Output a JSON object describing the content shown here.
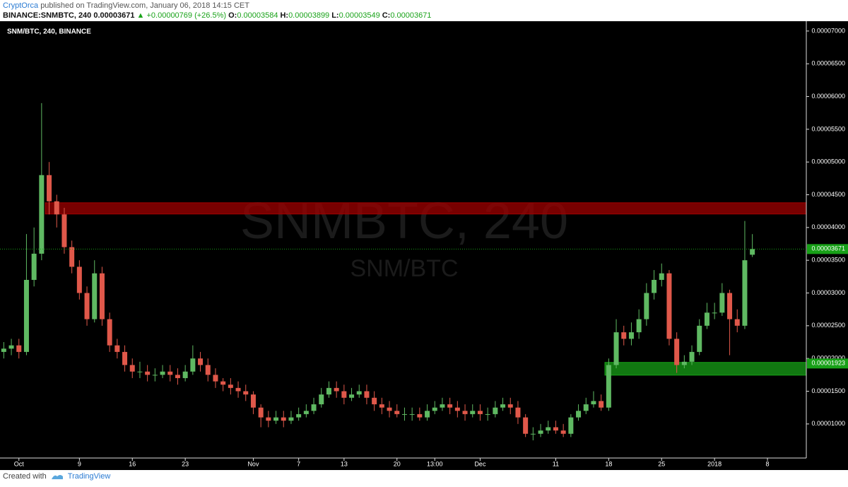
{
  "header": {
    "author": "CryptOrca",
    "published": "published on TradingView.com, January 06, 2018 14:15 CET",
    "symbol": "BINANCE:SNMBTC, 240",
    "last": "0.00003671",
    "change": "▲ +0.00000769 (+26.5%)",
    "ohlc": [
      {
        "label": "O:",
        "value": "0.00003584"
      },
      {
        "label": "H:",
        "value": "0.00003899"
      },
      {
        "label": "L:",
        "value": "0.00003549"
      },
      {
        "label": "C:",
        "value": "0.00003671"
      }
    ]
  },
  "footer": {
    "created": "Created with",
    "brand": "TradingView"
  },
  "chart_data": {
    "type": "candlestick",
    "legend": "SNM/BTC, 240, BINANCE",
    "watermark": "SNMBTC, 240",
    "watermark_sub": "SNM/BTC",
    "up_color": "#5fb962",
    "down_color": "#e0584a",
    "open": [
      2.1e-05,
      2.15e-05,
      2.2e-05,
      2.1e-05,
      3.2e-05,
      3.6e-05,
      4.8e-05,
      4.4e-05,
      4.2e-05,
      3.7e-05,
      3.4e-05,
      3e-05,
      2.6e-05,
      3.3e-05,
      2.6e-05,
      2.2e-05,
      2.1e-05,
      1.9e-05,
      1.8e-05,
      1.8e-05,
      1.75e-05,
      1.75e-05,
      1.8e-05,
      1.75e-05,
      1.7e-05,
      1.8e-05,
      2e-05,
      1.9e-05,
      1.75e-05,
      1.65e-05,
      1.6e-05,
      1.55e-05,
      1.5e-05,
      1.45e-05,
      1.25e-05,
      1.1e-05,
      1.05e-05,
      1.1e-05,
      1.05e-05,
      1.1e-05,
      1.15e-05,
      1.2e-05,
      1.3e-05,
      1.45e-05,
      1.55e-05,
      1.5e-05,
      1.4e-05,
      1.45e-05,
      1.5e-05,
      1.4e-05,
      1.3e-05,
      1.25e-05,
      1.2e-05,
      1.15e-05,
      1.15e-05,
      1.15e-05,
      1.1e-05,
      1.2e-05,
      1.25e-05,
      1.3e-05,
      1.25e-05,
      1.2e-05,
      1.15e-05,
      1.2e-05,
      1.15e-05,
      1.15e-05,
      1.25e-05,
      1.3e-05,
      1.25e-05,
      1.1e-05,
      8.5e-06,
      8.5e-06,
      9e-06,
      9.5e-06,
      9e-06,
      8.5e-06,
      1.1e-05,
      1.2e-05,
      1.3e-05,
      1.35e-05,
      1.25e-05,
      1.9e-05,
      2.4e-05,
      2.3e-05,
      2.4e-05,
      2.6e-05,
      3e-05,
      3.2e-05,
      3.3e-05,
      2.3e-05,
      1.9e-05,
      1.95e-05,
      2.1e-05,
      2.5e-05,
      2.7e-05,
      2.7e-05,
      3e-05,
      2.6e-05,
      2.5e-05,
      3.584e-05
    ],
    "high": [
      2.25e-05,
      2.3e-05,
      2.3e-05,
      3.9e-05,
      4e-05,
      5.9e-05,
      5e-05,
      4.5e-05,
      4.3e-05,
      3.8e-05,
      3.5e-05,
      3.1e-05,
      3.5e-05,
      3.4e-05,
      2.7e-05,
      2.3e-05,
      2.2e-05,
      2e-05,
      1.95e-05,
      1.9e-05,
      1.85e-05,
      1.9e-05,
      1.9e-05,
      1.85e-05,
      1.9e-05,
      2.2e-05,
      2.1e-05,
      2e-05,
      1.85e-05,
      1.7e-05,
      1.7e-05,
      1.65e-05,
      1.6e-05,
      1.5e-05,
      1.3e-05,
      1.2e-05,
      1.2e-05,
      1.2e-05,
      1.2e-05,
      1.25e-05,
      1.3e-05,
      1.4e-05,
      1.55e-05,
      1.65e-05,
      1.65e-05,
      1.6e-05,
      1.55e-05,
      1.6e-05,
      1.6e-05,
      1.5e-05,
      1.4e-05,
      1.35e-05,
      1.3e-05,
      1.25e-05,
      1.25e-05,
      1.25e-05,
      1.3e-05,
      1.35e-05,
      1.4e-05,
      1.4e-05,
      1.35e-05,
      1.3e-05,
      1.3e-05,
      1.3e-05,
      1.25e-05,
      1.35e-05,
      1.4e-05,
      1.4e-05,
      1.35e-05,
      1.15e-05,
      9.5e-06,
      1e-05,
      1.05e-05,
      1.05e-05,
      1e-05,
      1.15e-05,
      1.3e-05,
      1.4e-05,
      1.5e-05,
      1.45e-05,
      2e-05,
      2.6e-05,
      2.5e-05,
      2.55e-05,
      2.75e-05,
      3.15e-05,
      3.35e-05,
      3.45e-05,
      3.35e-05,
      2.4e-05,
      2.05e-05,
      2.2e-05,
      2.6e-05,
      2.85e-05,
      2.85e-05,
      3.15e-05,
      3.05e-05,
      2.75e-05,
      4.1e-05,
      3.899e-05
    ],
    "low": [
      2e-05,
      2.05e-05,
      2e-05,
      2.05e-05,
      3.1e-05,
      3.5e-05,
      4.2e-05,
      4e-05,
      3.6e-05,
      3.3e-05,
      2.9e-05,
      2.5e-05,
      2.55e-05,
      2.5e-05,
      2.1e-05,
      2e-05,
      1.8e-05,
      1.7e-05,
      1.7e-05,
      1.65e-05,
      1.65e-05,
      1.7e-05,
      1.65e-05,
      1.6e-05,
      1.65e-05,
      1.75e-05,
      1.8e-05,
      1.65e-05,
      1.55e-05,
      1.5e-05,
      1.45e-05,
      1.4e-05,
      1.35e-05,
      1.15e-05,
      9.5e-06,
      9.5e-06,
      1e-05,
      9.5e-06,
      1e-05,
      1.05e-05,
      1.1e-05,
      1.15e-05,
      1.25e-05,
      1.4e-05,
      1.4e-05,
      1.3e-05,
      1.35e-05,
      1.4e-05,
      1.3e-05,
      1.2e-05,
      1.15e-05,
      1.1e-05,
      1.1e-05,
      1.05e-05,
      1.05e-05,
      1.05e-05,
      1.05e-05,
      1.15e-05,
      1.2e-05,
      1.15e-05,
      1.1e-05,
      1.05e-05,
      1.1e-05,
      1.05e-05,
      1.05e-05,
      1.1e-05,
      1.2e-05,
      1.15e-05,
      1e-05,
      8e-06,
      7.5e-06,
      8e-06,
      8.5e-06,
      8.5e-06,
      8e-06,
      8e-06,
      1.05e-05,
      1.15e-05,
      1.25e-05,
      1.2e-05,
      1.2e-05,
      1.85e-05,
      2.2e-05,
      2.2e-05,
      2.3e-05,
      2.5e-05,
      2.9e-05,
      3.1e-05,
      2.2e-05,
      1.78e-05,
      1.85e-05,
      1.9e-05,
      2.05e-05,
      2.45e-05,
      2.6e-05,
      2.65e-05,
      2.05e-05,
      2.4e-05,
      2.45e-05,
      3.549e-05
    ],
    "close": [
      2.15e-05,
      2.2e-05,
      2.1e-05,
      3.2e-05,
      3.6e-05,
      4.8e-05,
      4.4e-05,
      4.2e-05,
      3.7e-05,
      3.4e-05,
      3e-05,
      2.6e-05,
      3.3e-05,
      2.6e-05,
      2.2e-05,
      2.1e-05,
      1.9e-05,
      1.8e-05,
      1.8e-05,
      1.75e-05,
      1.75e-05,
      1.8e-05,
      1.75e-05,
      1.7e-05,
      1.8e-05,
      2e-05,
      1.9e-05,
      1.75e-05,
      1.65e-05,
      1.6e-05,
      1.55e-05,
      1.5e-05,
      1.45e-05,
      1.25e-05,
      1.1e-05,
      1.05e-05,
      1.1e-05,
      1.05e-05,
      1.1e-05,
      1.15e-05,
      1.2e-05,
      1.3e-05,
      1.45e-05,
      1.55e-05,
      1.5e-05,
      1.4e-05,
      1.45e-05,
      1.5e-05,
      1.4e-05,
      1.3e-05,
      1.25e-05,
      1.2e-05,
      1.15e-05,
      1.15e-05,
      1.15e-05,
      1.1e-05,
      1.2e-05,
      1.25e-05,
      1.3e-05,
      1.25e-05,
      1.2e-05,
      1.15e-05,
      1.2e-05,
      1.15e-05,
      1.15e-05,
      1.25e-05,
      1.3e-05,
      1.25e-05,
      1.1e-05,
      8.5e-06,
      8.5e-06,
      9e-06,
      9.5e-06,
      9e-06,
      8.5e-06,
      1.1e-05,
      1.2e-05,
      1.3e-05,
      1.35e-05,
      1.25e-05,
      1.9e-05,
      2.4e-05,
      2.3e-05,
      2.4e-05,
      2.6e-05,
      3e-05,
      3.2e-05,
      3.3e-05,
      2.3e-05,
      1.9e-05,
      1.95e-05,
      2.1e-05,
      2.5e-05,
      2.7e-05,
      2.7e-05,
      3e-05,
      2.6e-05,
      2.5e-05,
      3.5e-05,
      3.671e-05
    ],
    "zones": [
      {
        "low": 4.206e-05,
        "high": 4.378e-05,
        "start": 6,
        "color": "#a00000"
      },
      {
        "low": 1.745e-05,
        "high": 1.94e-05,
        "start": 80,
        "color": "#17a017"
      }
    ],
    "last_price": {
      "value": 3.671e-05,
      "label": "0.00003671",
      "color": "#17a017"
    },
    "zone_label": {
      "value": 1.923e-05,
      "label": "0.00001923",
      "color": "#17a017"
    },
    "ylim": [
      4.8e-06,
      7.15e-05
    ],
    "yticks": [
      {
        "value": 1e-05,
        "label": "0.00001000"
      },
      {
        "value": 1.5e-05,
        "label": "0.00001500"
      },
      {
        "value": 2e-05,
        "label": "0.00002000"
      },
      {
        "value": 2.5e-05,
        "label": "0.00002500"
      },
      {
        "value": 3e-05,
        "label": "0.00003000"
      },
      {
        "value": 3.5e-05,
        "label": "0.00003500"
      },
      {
        "value": 4e-05,
        "label": "0.00004000"
      },
      {
        "value": 4.5e-05,
        "label": "0.00004500"
      },
      {
        "value": 5e-05,
        "label": "0.00005000"
      },
      {
        "value": 5.5e-05,
        "label": "0.00005500"
      },
      {
        "value": 6e-05,
        "label": "0.00006000"
      },
      {
        "value": 6.5e-05,
        "label": "0.00006500"
      },
      {
        "value": 7e-05,
        "label": "0.00007000"
      }
    ],
    "xticks": [
      {
        "value": 2,
        "label": "Oct"
      },
      {
        "value": 10,
        "label": "9"
      },
      {
        "value": 17,
        "label": "16"
      },
      {
        "value": 24,
        "label": "23"
      },
      {
        "value": 33,
        "label": "Nov"
      },
      {
        "value": 39,
        "label": "7"
      },
      {
        "value": 45,
        "label": "13"
      },
      {
        "value": 52,
        "label": "20"
      },
      {
        "value": 57,
        "label": "13:00"
      },
      {
        "value": 63,
        "label": "Dec"
      },
      {
        "value": 73,
        "label": "11"
      },
      {
        "value": 80,
        "label": "18"
      },
      {
        "value": 87,
        "label": "25"
      },
      {
        "value": 94,
        "label": "2018"
      },
      {
        "value": 101,
        "label": "8"
      }
    ]
  }
}
